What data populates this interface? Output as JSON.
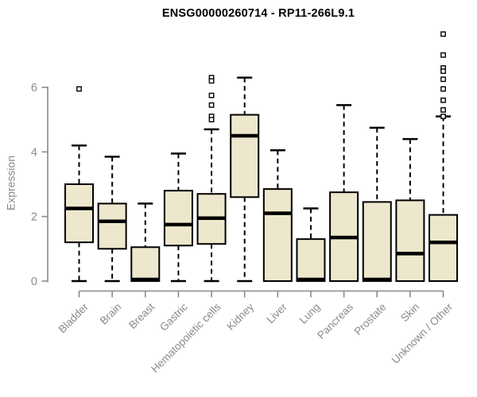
{
  "chart_data": {
    "type": "boxplot",
    "title": "ENSG00000260714 - RP11-266L9.1",
    "ylabel": "Expression",
    "xlabel": "",
    "yticks": [
      0,
      2,
      4,
      6
    ],
    "ylim": [
      0,
      7.8
    ],
    "grid": false,
    "legend": "none",
    "categories": [
      "Bladder",
      "Brain",
      "Breast",
      "Gastric",
      "Hematopoietic cells",
      "Kidney",
      "Liver",
      "Lung",
      "Pancreas",
      "Prostate",
      "Skin",
      "Unknown / Other"
    ],
    "boxes": [
      {
        "category": "Bladder",
        "whisker_low": 0,
        "q1": 1.2,
        "median": 2.25,
        "q3": 3.0,
        "whisker_high": 4.2,
        "outliers": [
          5.95
        ]
      },
      {
        "category": "Brain",
        "whisker_low": 0,
        "q1": 1.0,
        "median": 1.85,
        "q3": 2.4,
        "whisker_high": 3.85,
        "outliers": []
      },
      {
        "category": "Breast",
        "whisker_low": 0,
        "q1": 0,
        "median": 0.05,
        "q3": 1.05,
        "whisker_high": 2.4,
        "outliers": []
      },
      {
        "category": "Gastric",
        "whisker_low": 0,
        "q1": 1.1,
        "median": 1.75,
        "q3": 2.8,
        "whisker_high": 3.95,
        "outliers": []
      },
      {
        "category": "Hematopoietic cells",
        "whisker_low": 0,
        "q1": 1.15,
        "median": 1.95,
        "q3": 2.7,
        "whisker_high": 4.7,
        "outliers": [
          6.3,
          6.2,
          5.75,
          5.45,
          5.1,
          5.0
        ]
      },
      {
        "category": "Kidney",
        "whisker_low": 0,
        "q1": 2.6,
        "median": 4.5,
        "q3": 5.15,
        "whisker_high": 6.3,
        "outliers": []
      },
      {
        "category": "Liver",
        "whisker_low": 0,
        "q1": 0,
        "median": 2.1,
        "q3": 2.85,
        "whisker_high": 4.05,
        "outliers": []
      },
      {
        "category": "Lung",
        "whisker_low": 0,
        "q1": 0,
        "median": 0.05,
        "q3": 1.3,
        "whisker_high": 2.25,
        "outliers": []
      },
      {
        "category": "Pancreas",
        "whisker_low": 0,
        "q1": 0,
        "median": 1.35,
        "q3": 2.75,
        "whisker_high": 5.45,
        "outliers": []
      },
      {
        "category": "Prostate",
        "whisker_low": 0,
        "q1": 0,
        "median": 0.05,
        "q3": 2.45,
        "whisker_high": 4.75,
        "outliers": []
      },
      {
        "category": "Skin",
        "whisker_low": 0,
        "q1": 0,
        "median": 0.85,
        "q3": 2.5,
        "whisker_high": 4.4,
        "outliers": []
      },
      {
        "category": "Unknown / Other",
        "whisker_low": 0,
        "q1": 0,
        "median": 1.2,
        "q3": 2.05,
        "whisker_high": 5.1,
        "outliers": [
          7.65,
          7.0,
          6.6,
          6.5,
          6.25,
          5.95,
          5.6,
          5.3,
          5.1
        ]
      }
    ],
    "colors": {
      "box_fill": "#EDE7CD",
      "box_stroke": "#000000",
      "median_stroke": "#000000",
      "whisker_stroke": "#000000",
      "outlier_stroke": "#000000",
      "outlier_fill": "#ffffff",
      "axis": "#8a8a8a",
      "title": "#000000",
      "background": "#ffffff"
    }
  }
}
